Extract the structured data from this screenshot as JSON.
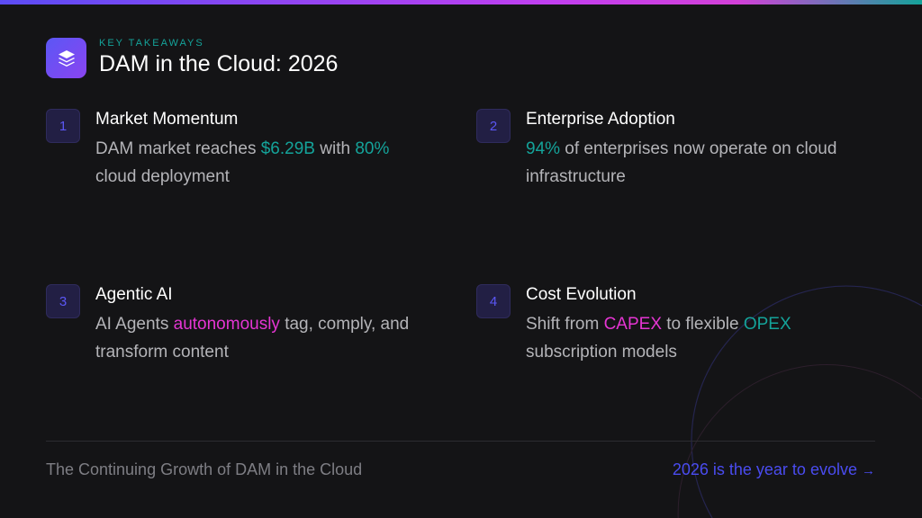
{
  "header": {
    "eyebrow": "KEY TAKEAWAYS",
    "title": "DAM in the Cloud: 2026",
    "icon": "layers-icon"
  },
  "items": [
    {
      "number": "1",
      "title": "Market Momentum",
      "desc": [
        {
          "t": "DAM market reaches "
        },
        {
          "t": "$6.29B",
          "c": "teal"
        },
        {
          "t": " with "
        },
        {
          "t": "80%",
          "c": "teal"
        },
        {
          "t": " cloud deployment"
        }
      ]
    },
    {
      "number": "2",
      "title": "Enterprise Adoption",
      "desc": [
        {
          "t": "94%",
          "c": "teal"
        },
        {
          "t": " of enterprises now operate on cloud infrastructure"
        }
      ]
    },
    {
      "number": "3",
      "title": "Agentic AI",
      "desc": [
        {
          "t": "AI Agents "
        },
        {
          "t": "autonomously",
          "c": "pink"
        },
        {
          "t": " tag, comply, and transform content"
        }
      ]
    },
    {
      "number": "4",
      "title": "Cost Evolution",
      "desc": [
        {
          "t": "Shift from "
        },
        {
          "t": "CAPEX",
          "c": "pink"
        },
        {
          "t": " to flexible "
        },
        {
          "t": "OPEX",
          "c": "teal"
        },
        {
          "t": " subscription models"
        }
      ]
    }
  ],
  "footer": {
    "left": "The Continuing Growth of DAM in the Cloud",
    "right": "2026 is the year to evolve",
    "arrow": "→"
  },
  "colors": {
    "accent": "#5b57f5",
    "teal": "#14a39a",
    "pink": "#e535d3",
    "background": "#141416"
  }
}
